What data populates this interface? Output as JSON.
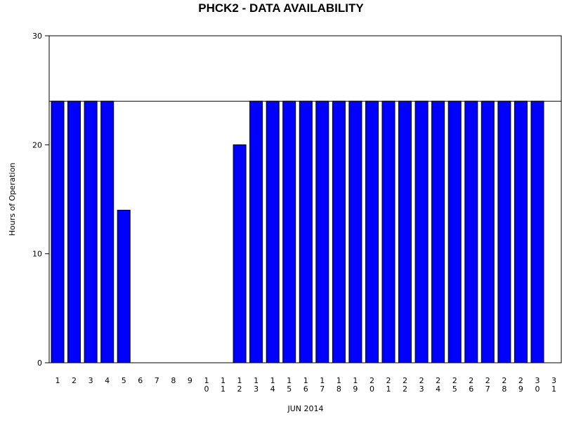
{
  "chart_data": {
    "type": "bar",
    "title": "PHCK2 - DATA AVAILABILITY",
    "ylabel": "Hours of Operation",
    "xlabel": "JUN 2014",
    "ylim": [
      0,
      30
    ],
    "yticks": [
      0,
      10,
      20,
      30
    ],
    "reference_line": 24,
    "bar_color": "#0000ff",
    "categories": [
      "1",
      "2",
      "3",
      "4",
      "5",
      "6",
      "7",
      "8",
      "9",
      "10",
      "11",
      "12",
      "13",
      "14",
      "15",
      "16",
      "17",
      "18",
      "19",
      "20",
      "21",
      "22",
      "23",
      "24",
      "25",
      "26",
      "27",
      "28",
      "29",
      "30",
      "31"
    ],
    "values": [
      24,
      24,
      24,
      24,
      14,
      0,
      0,
      0,
      0,
      0,
      0,
      20,
      24,
      24,
      24,
      24,
      24,
      24,
      24,
      24,
      24,
      24,
      24,
      24,
      24,
      24,
      24,
      24,
      24,
      24,
      0
    ]
  }
}
